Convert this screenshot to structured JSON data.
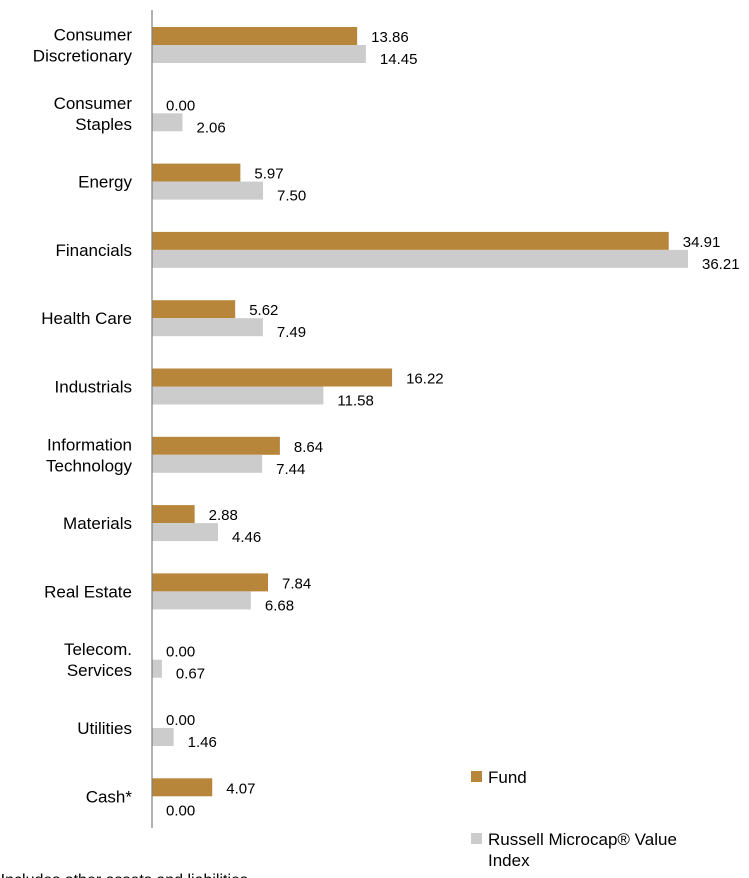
{
  "colors": {
    "fund": "#b8863b",
    "index": "#cccccc",
    "axis": "#7f7f7f"
  },
  "chart_data": {
    "type": "bar",
    "orientation": "horizontal",
    "categories": [
      [
        "Consumer",
        "Discretionary"
      ],
      [
        "Consumer",
        "Staples"
      ],
      [
        "Energy"
      ],
      [
        "Financials"
      ],
      [
        "Health Care"
      ],
      [
        "Industrials"
      ],
      [
        "Information",
        "Technology"
      ],
      [
        "Materials"
      ],
      [
        "Real Estate"
      ],
      [
        "Telecom.",
        "Services"
      ],
      [
        "Utilities"
      ],
      [
        "Cash*"
      ]
    ],
    "series": [
      {
        "name": "Fund",
        "values": [
          13.86,
          0.0,
          5.97,
          34.91,
          5.62,
          16.22,
          8.64,
          2.88,
          7.84,
          0.0,
          0.0,
          4.07
        ]
      },
      {
        "name": "Russell Microcap® Value Index",
        "values": [
          14.45,
          2.06,
          7.5,
          36.21,
          7.49,
          11.58,
          7.44,
          4.46,
          6.68,
          0.67,
          1.46,
          0.0
        ]
      }
    ],
    "xlim": [
      0,
      37
    ],
    "value_format": "2dp",
    "legend": {
      "position": "bottom-right",
      "entries": [
        {
          "lines": [
            "Fund"
          ]
        },
        {
          "lines": [
            "Russell Microcap® Value",
            "Index"
          ]
        }
      ]
    },
    "footnote": "* Includes other assets and liabilities."
  }
}
